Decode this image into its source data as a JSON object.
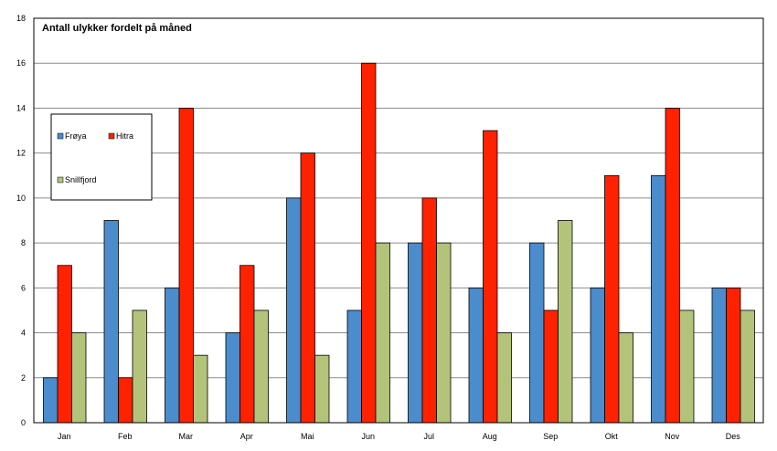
{
  "chart_data": {
    "type": "bar",
    "title": "Antall ulykker fordelt på måned",
    "xlabel": "",
    "ylabel": "",
    "ylim": [
      0,
      18
    ],
    "yticks": [
      0,
      2,
      4,
      6,
      8,
      10,
      12,
      14,
      16,
      18
    ],
    "grid": true,
    "legend_position": "left",
    "categories": [
      "Jan",
      "Feb",
      "Mar",
      "Apr",
      "Mai",
      "Jun",
      "Jul",
      "Aug",
      "Sep",
      "Okt",
      "Nov",
      "Des"
    ],
    "series": [
      {
        "name": "Frøya",
        "color": "#4a8ccc",
        "values": [
          2,
          9,
          6,
          4,
          10,
          5,
          8,
          6,
          8,
          6,
          11,
          6
        ]
      },
      {
        "name": "Hitra",
        "color": "#ff2200",
        "values": [
          7,
          2,
          14,
          7,
          12,
          16,
          10,
          13,
          5,
          11,
          14,
          6
        ]
      },
      {
        "name": "Snillfjord",
        "color": "#b3c47a",
        "values": [
          4,
          5,
          3,
          5,
          3,
          8,
          8,
          4,
          9,
          4,
          5,
          5
        ]
      }
    ]
  }
}
